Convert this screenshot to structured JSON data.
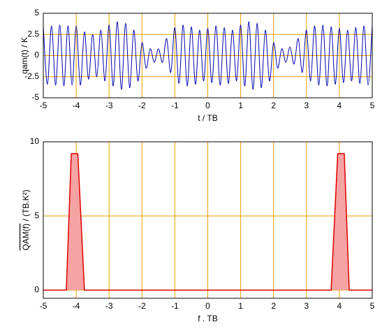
{
  "chart_data": [
    {
      "type": "line",
      "xlabel": "t / TB",
      "ylabel": "qam(t) / K",
      "xlim": [
        -5,
        5
      ],
      "xticks": [
        -5,
        -4,
        -3,
        -2,
        -1,
        0,
        1,
        2,
        3,
        4,
        5
      ],
      "ylim": [
        -5,
        5
      ],
      "yticks": [
        -5,
        -2.5,
        0,
        2.5,
        5
      ],
      "grid": true,
      "series": [
        {
          "color": "#0000b0",
          "x": [
            -5,
            -4.875,
            -4.75,
            -4.625,
            -4.5,
            -4.375,
            -4.25,
            -4.125,
            -4,
            -3.875,
            -3.75,
            -3.625,
            -3.5,
            -3.375,
            -3.25,
            -3.125,
            -3,
            -2.875,
            -2.75,
            -2.625,
            -2.5,
            -2.375,
            -2.25,
            -2.125,
            -2,
            -1.875,
            -1.75,
            -1.625,
            -1.5,
            -1.375,
            -1.25,
            -1.125,
            -1,
            -0.875,
            -0.75,
            -0.625,
            -0.5,
            -0.375,
            -0.25,
            -0.125,
            0,
            0.125,
            0.25,
            0.375,
            0.5,
            0.625,
            0.75,
            0.875,
            1,
            1.125,
            1.25,
            1.375,
            1.5,
            1.625,
            1.75,
            1.875,
            2,
            2.125,
            2.25,
            2.375,
            2.5,
            2.625,
            2.75,
            2.875,
            3,
            3.125,
            3.25,
            3.375,
            3.5,
            3.625,
            3.75,
            3.875,
            4,
            4.125,
            4.25,
            4.375,
            4.5,
            4.625,
            4.75,
            4.875,
            5
          ],
          "values": [
            3.4,
            -3.4,
            3.5,
            -3.5,
            3.6,
            -3.6,
            3.5,
            -3.5,
            3.5,
            -3.5,
            2.8,
            -2.8,
            2.5,
            -2.5,
            3.0,
            -3.0,
            3.6,
            -3.6,
            4.0,
            -4.0,
            3.8,
            -3.8,
            3.0,
            -3.0,
            1.5,
            -1.5,
            0.8,
            -0.8,
            0.8,
            -0.8,
            2.0,
            -2.0,
            3.3,
            -3.3,
            3.6,
            -3.6,
            3.4,
            -3.4,
            3.0,
            -3.0,
            3.2,
            -3.2,
            3.5,
            -3.5,
            3.3,
            -3.3,
            3.0,
            -3.0,
            3.6,
            -3.6,
            4.0,
            -4.0,
            3.8,
            -3.8,
            3.0,
            -3.0,
            1.5,
            -1.5,
            0.8,
            -0.8,
            1.0,
            -1.0,
            2.0,
            -2.0,
            3.0,
            -3.0,
            3.5,
            -3.5,
            3.6,
            -3.6,
            3.4,
            -3.4,
            3.2,
            -3.2,
            3.0,
            -3.0,
            3.3,
            -3.3,
            3.5,
            -3.5,
            3.5
          ]
        }
      ]
    },
    {
      "type": "area",
      "xlabel": "f . TB",
      "ylabel_overline": "QAM(f)",
      "ylabel": " / (TB.K²)",
      "xlim": [
        -5,
        5
      ],
      "xticks": [
        -5,
        -4,
        -3,
        -2,
        -1,
        0,
        1,
        2,
        3,
        4,
        5
      ],
      "ylim": [
        -0.55,
        10
      ],
      "yticks": [
        0,
        5,
        10
      ],
      "grid": true,
      "series": [
        {
          "color": "#e00000",
          "fill": "#f5a3a3",
          "x": [
            -5,
            -4.3,
            -4.15,
            -3.95,
            -3.75,
            3.75,
            3.95,
            4.15,
            4.3,
            5
          ],
          "values": [
            0,
            0,
            9.2,
            9.2,
            0,
            0,
            9.2,
            9.2,
            0,
            0
          ]
        }
      ]
    }
  ]
}
